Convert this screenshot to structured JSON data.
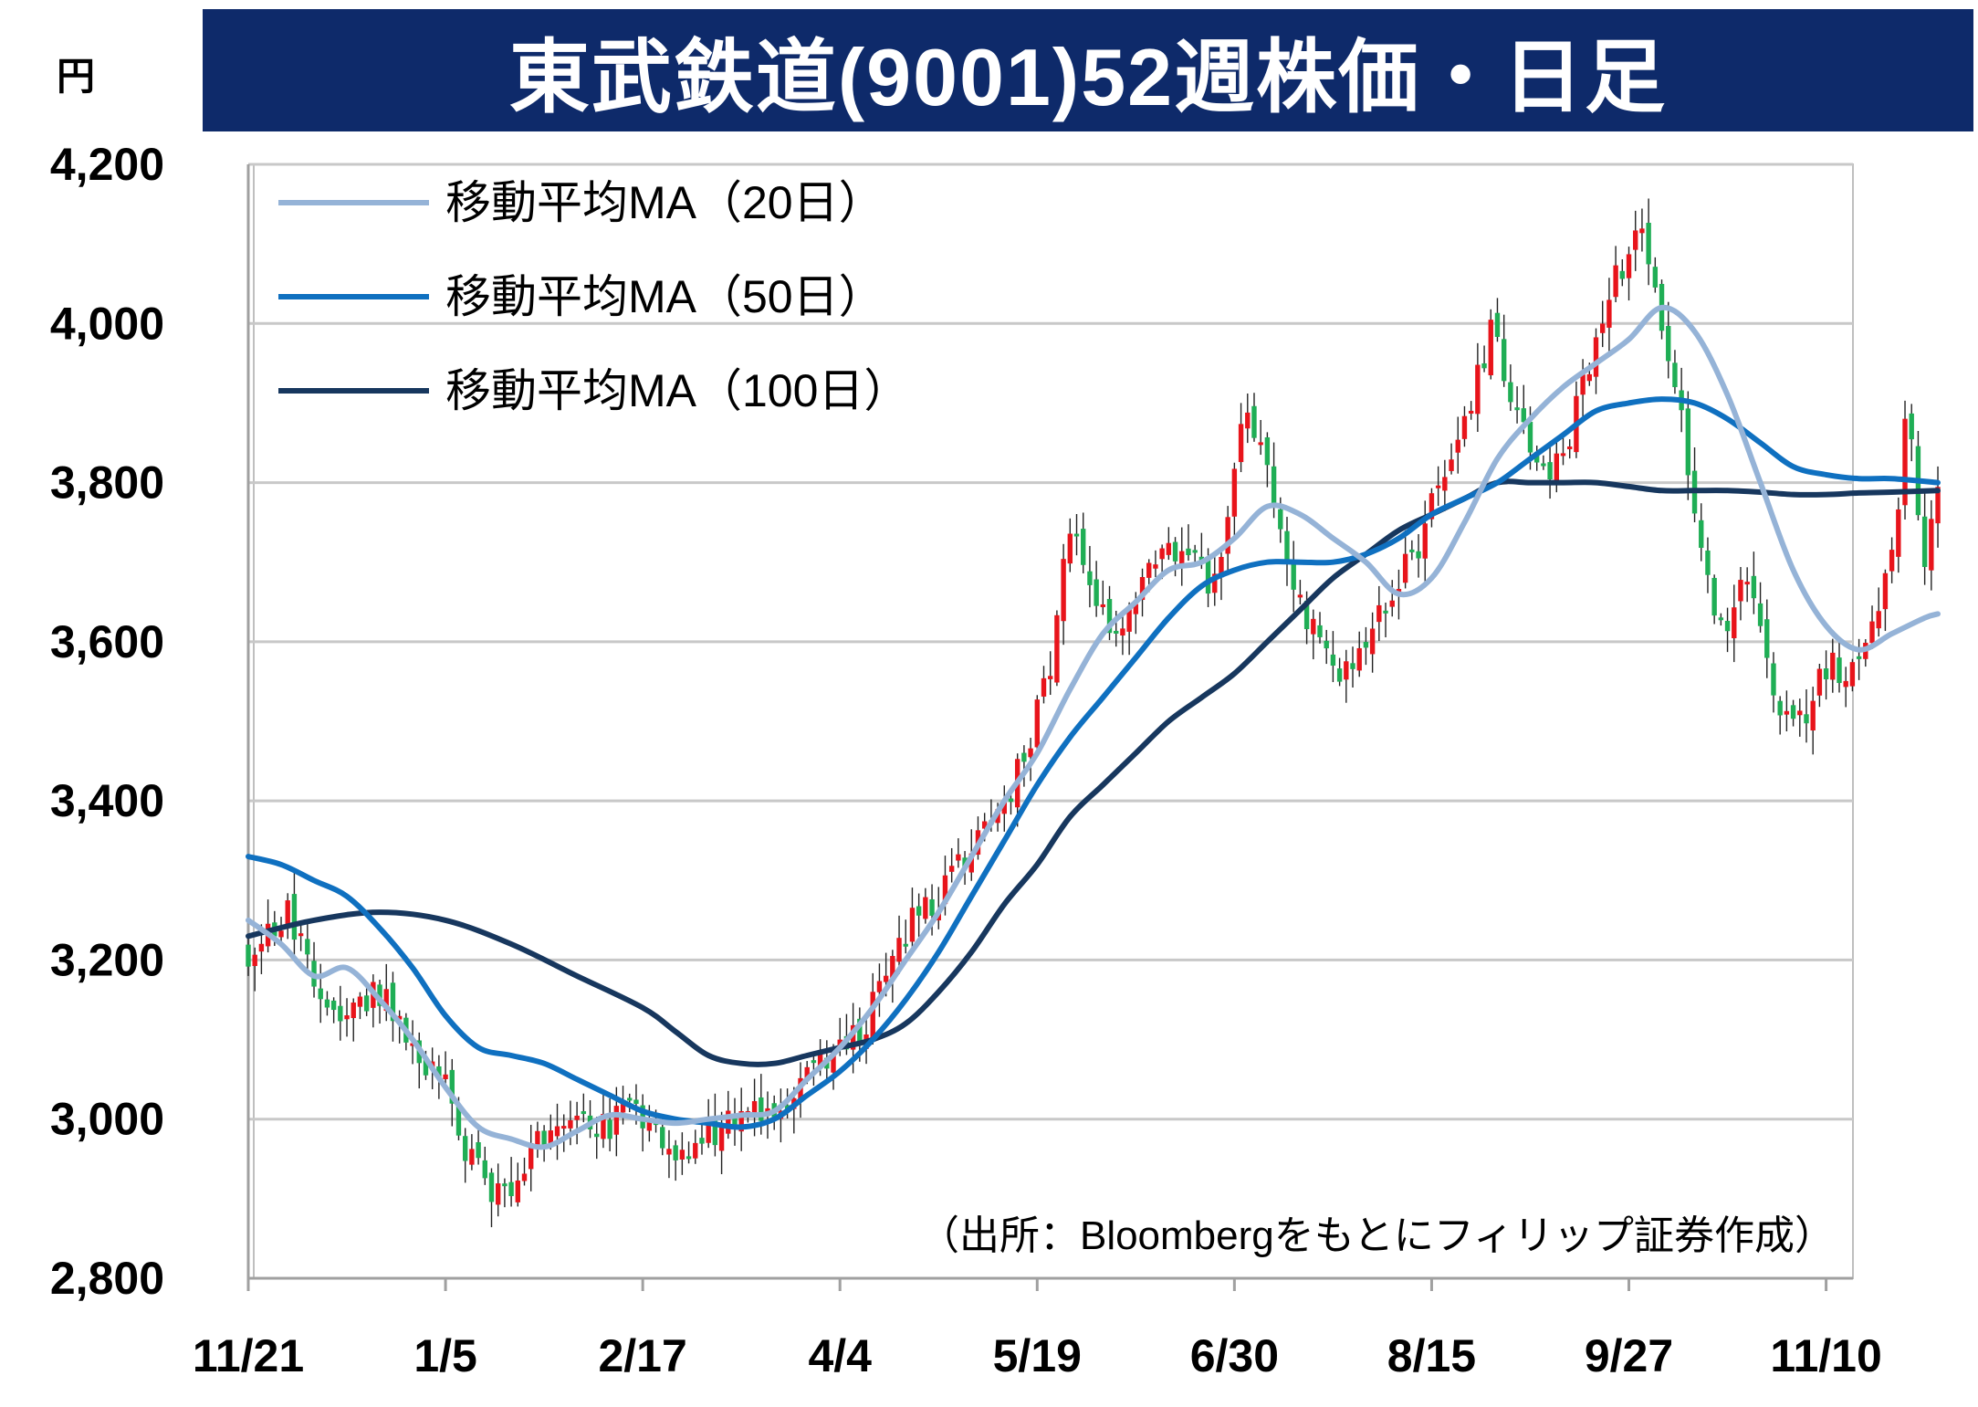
{
  "header": {
    "unit": "円",
    "title": "東武鉄道(9001)52週株価・日足"
  },
  "chart_data": {
    "type": "candlestick",
    "ylim": [
      2800,
      4200
    ],
    "yticks": [
      {
        "value": 4200,
        "label": "4,200"
      },
      {
        "value": 4000,
        "label": "4,000"
      },
      {
        "value": 3800,
        "label": "3,800"
      },
      {
        "value": 3600,
        "label": "3,600"
      },
      {
        "value": 3400,
        "label": "3,400"
      },
      {
        "value": 3200,
        "label": "3,200"
      },
      {
        "value": 3000,
        "label": "3,000"
      },
      {
        "value": 2800,
        "label": "2,800"
      }
    ],
    "xlim": [
      0,
      242
    ],
    "xticks": [
      {
        "pos": 0,
        "label": "11/21"
      },
      {
        "pos": 30,
        "label": "1/5"
      },
      {
        "pos": 60,
        "label": "2/17"
      },
      {
        "pos": 90,
        "label": "4/4"
      },
      {
        "pos": 120,
        "label": "5/19"
      },
      {
        "pos": 150,
        "label": "6/30"
      },
      {
        "pos": 180,
        "label": "8/15"
      },
      {
        "pos": 210,
        "label": "9/27"
      },
      {
        "pos": 240,
        "label": "11/10"
      }
    ],
    "grid": true,
    "legend_position": "top-left",
    "up_color": "#e8141b",
    "down_color": "#1fae55",
    "close_path": [
      [
        0,
        3200
      ],
      [
        6,
        3260
      ],
      [
        10,
        3180
      ],
      [
        15,
        3130
      ],
      [
        20,
        3160
      ],
      [
        25,
        3090
      ],
      [
        30,
        3050
      ],
      [
        33,
        2960
      ],
      [
        36,
        2920
      ],
      [
        38,
        2905
      ],
      [
        40,
        2900
      ],
      [
        43,
        2960
      ],
      [
        46,
        3000
      ],
      [
        50,
        3010
      ],
      [
        54,
        2990
      ],
      [
        58,
        3010
      ],
      [
        62,
        2990
      ],
      [
        66,
        2960
      ],
      [
        70,
        2980
      ],
      [
        72,
        2990
      ],
      [
        75,
        3000
      ],
      [
        80,
        3010
      ],
      [
        85,
        3060
      ],
      [
        90,
        3080
      ],
      [
        93,
        3110
      ],
      [
        97,
        3170
      ],
      [
        101,
        3250
      ],
      [
        105,
        3280
      ],
      [
        110,
        3340
      ],
      [
        115,
        3400
      ],
      [
        118,
        3450
      ],
      [
        122,
        3570
      ],
      [
        124,
        3710
      ],
      [
        126,
        3740
      ],
      [
        128,
        3690
      ],
      [
        131,
        3600
      ],
      [
        134,
        3640
      ],
      [
        137,
        3690
      ],
      [
        140,
        3720
      ],
      [
        143,
        3720
      ],
      [
        146,
        3680
      ],
      [
        148,
        3720
      ],
      [
        150,
        3830
      ],
      [
        152,
        3890
      ],
      [
        154,
        3840
      ],
      [
        156,
        3780
      ],
      [
        158,
        3700
      ],
      [
        160,
        3640
      ],
      [
        163,
        3610
      ],
      [
        166,
        3550
      ],
      [
        169,
        3580
      ],
      [
        172,
        3630
      ],
      [
        175,
        3680
      ],
      [
        178,
        3720
      ],
      [
        180,
        3780
      ],
      [
        183,
        3810
      ],
      [
        186,
        3900
      ],
      [
        189,
        3990
      ],
      [
        192,
        3920
      ],
      [
        195,
        3850
      ],
      [
        198,
        3820
      ],
      [
        201,
        3860
      ],
      [
        204,
        3950
      ],
      [
        206,
        3990
      ],
      [
        208,
        4060
      ],
      [
        210,
        4090
      ],
      [
        212,
        4110
      ],
      [
        214,
        4040
      ],
      [
        216,
        3960
      ],
      [
        218,
        3900
      ],
      [
        219,
        3820
      ],
      [
        221,
        3720
      ],
      [
        223,
        3640
      ],
      [
        225,
        3620
      ],
      [
        227,
        3690
      ],
      [
        229,
        3640
      ],
      [
        231,
        3560
      ],
      [
        233,
        3510
      ],
      [
        235,
        3490
      ],
      [
        237,
        3510
      ],
      [
        239,
        3550
      ],
      [
        241,
        3570
      ],
      [
        243,
        3560
      ],
      [
        245,
        3580
      ],
      [
        247,
        3620
      ],
      [
        249,
        3680
      ],
      [
        251,
        3760
      ],
      [
        252,
        3900
      ],
      [
        253,
        3850
      ],
      [
        254,
        3740
      ],
      [
        255,
        3700
      ],
      [
        256,
        3760
      ],
      [
        257,
        3790
      ]
    ],
    "series": [
      {
        "name": "移動平均MA(20日)",
        "label": "移動平均MA（20日）",
        "color": "#95b3d7",
        "points": [
          [
            0,
            3250
          ],
          [
            5,
            3220
          ],
          [
            10,
            3180
          ],
          [
            15,
            3190
          ],
          [
            20,
            3150
          ],
          [
            25,
            3100
          ],
          [
            30,
            3040
          ],
          [
            35,
            2990
          ],
          [
            40,
            2975
          ],
          [
            45,
            2965
          ],
          [
            50,
            2985
          ],
          [
            55,
            3005
          ],
          [
            60,
            3000
          ],
          [
            65,
            2995
          ],
          [
            70,
            3000
          ],
          [
            75,
            3005
          ],
          [
            80,
            3010
          ],
          [
            85,
            3050
          ],
          [
            90,
            3090
          ],
          [
            95,
            3140
          ],
          [
            100,
            3200
          ],
          [
            105,
            3260
          ],
          [
            110,
            3330
          ],
          [
            115,
            3400
          ],
          [
            120,
            3460
          ],
          [
            125,
            3540
          ],
          [
            130,
            3610
          ],
          [
            135,
            3650
          ],
          [
            140,
            3690
          ],
          [
            145,
            3700
          ],
          [
            150,
            3730
          ],
          [
            155,
            3770
          ],
          [
            160,
            3760
          ],
          [
            165,
            3730
          ],
          [
            170,
            3700
          ],
          [
            175,
            3660
          ],
          [
            180,
            3680
          ],
          [
            185,
            3750
          ],
          [
            190,
            3830
          ],
          [
            195,
            3880
          ],
          [
            200,
            3920
          ],
          [
            205,
            3950
          ],
          [
            210,
            3980
          ],
          [
            215,
            4020
          ],
          [
            220,
            3990
          ],
          [
            225,
            3910
          ],
          [
            230,
            3800
          ],
          [
            235,
            3690
          ],
          [
            240,
            3620
          ],
          [
            245,
            3590
          ],
          [
            250,
            3610
          ],
          [
            255,
            3630
          ],
          [
            257,
            3635
          ]
        ]
      },
      {
        "name": "移動平均MA(50日)",
        "label": "移動平均MA（50日）",
        "color": "#0f70c0",
        "points": [
          [
            0,
            3330
          ],
          [
            5,
            3320
          ],
          [
            10,
            3300
          ],
          [
            15,
            3280
          ],
          [
            20,
            3240
          ],
          [
            25,
            3190
          ],
          [
            30,
            3130
          ],
          [
            35,
            3090
          ],
          [
            40,
            3080
          ],
          [
            45,
            3070
          ],
          [
            50,
            3050
          ],
          [
            55,
            3030
          ],
          [
            60,
            3010
          ],
          [
            65,
            3000
          ],
          [
            70,
            2995
          ],
          [
            75,
            2990
          ],
          [
            80,
            3000
          ],
          [
            85,
            3030
          ],
          [
            90,
            3060
          ],
          [
            95,
            3100
          ],
          [
            100,
            3150
          ],
          [
            105,
            3210
          ],
          [
            110,
            3280
          ],
          [
            115,
            3350
          ],
          [
            120,
            3420
          ],
          [
            125,
            3480
          ],
          [
            130,
            3530
          ],
          [
            135,
            3580
          ],
          [
            140,
            3630
          ],
          [
            145,
            3670
          ],
          [
            150,
            3690
          ],
          [
            155,
            3700
          ],
          [
            160,
            3700
          ],
          [
            165,
            3700
          ],
          [
            170,
            3710
          ],
          [
            175,
            3730
          ],
          [
            180,
            3760
          ],
          [
            185,
            3780
          ],
          [
            190,
            3800
          ],
          [
            195,
            3830
          ],
          [
            200,
            3860
          ],
          [
            205,
            3890
          ],
          [
            210,
            3900
          ],
          [
            215,
            3905
          ],
          [
            220,
            3900
          ],
          [
            225,
            3880
          ],
          [
            230,
            3850
          ],
          [
            235,
            3820
          ],
          [
            240,
            3810
          ],
          [
            245,
            3805
          ],
          [
            250,
            3805
          ],
          [
            257,
            3800
          ]
        ]
      },
      {
        "name": "移動平均MA(100日)",
        "label": "移動平均MA（100日）",
        "color": "#17375e",
        "points": [
          [
            0,
            3230
          ],
          [
            10,
            3250
          ],
          [
            20,
            3260
          ],
          [
            30,
            3250
          ],
          [
            40,
            3220
          ],
          [
            50,
            3180
          ],
          [
            60,
            3140
          ],
          [
            65,
            3110
          ],
          [
            70,
            3080
          ],
          [
            75,
            3070
          ],
          [
            80,
            3070
          ],
          [
            85,
            3080
          ],
          [
            90,
            3090
          ],
          [
            95,
            3100
          ],
          [
            100,
            3120
          ],
          [
            105,
            3160
          ],
          [
            110,
            3210
          ],
          [
            115,
            3270
          ],
          [
            120,
            3320
          ],
          [
            125,
            3380
          ],
          [
            130,
            3420
          ],
          [
            135,
            3460
          ],
          [
            140,
            3500
          ],
          [
            145,
            3530
          ],
          [
            150,
            3560
          ],
          [
            155,
            3600
          ],
          [
            160,
            3640
          ],
          [
            165,
            3680
          ],
          [
            170,
            3710
          ],
          [
            175,
            3740
          ],
          [
            180,
            3760
          ],
          [
            185,
            3780
          ],
          [
            190,
            3800
          ],
          [
            195,
            3800
          ],
          [
            200,
            3800
          ],
          [
            205,
            3800
          ],
          [
            210,
            3795
          ],
          [
            215,
            3790
          ],
          [
            220,
            3790
          ],
          [
            225,
            3790
          ],
          [
            230,
            3788
          ],
          [
            235,
            3785
          ],
          [
            240,
            3785
          ],
          [
            245,
            3787
          ],
          [
            250,
            3788
          ],
          [
            257,
            3790
          ]
        ]
      }
    ],
    "source_note": "（出所：Bloombergをもとにフィリップ証券作成）"
  }
}
